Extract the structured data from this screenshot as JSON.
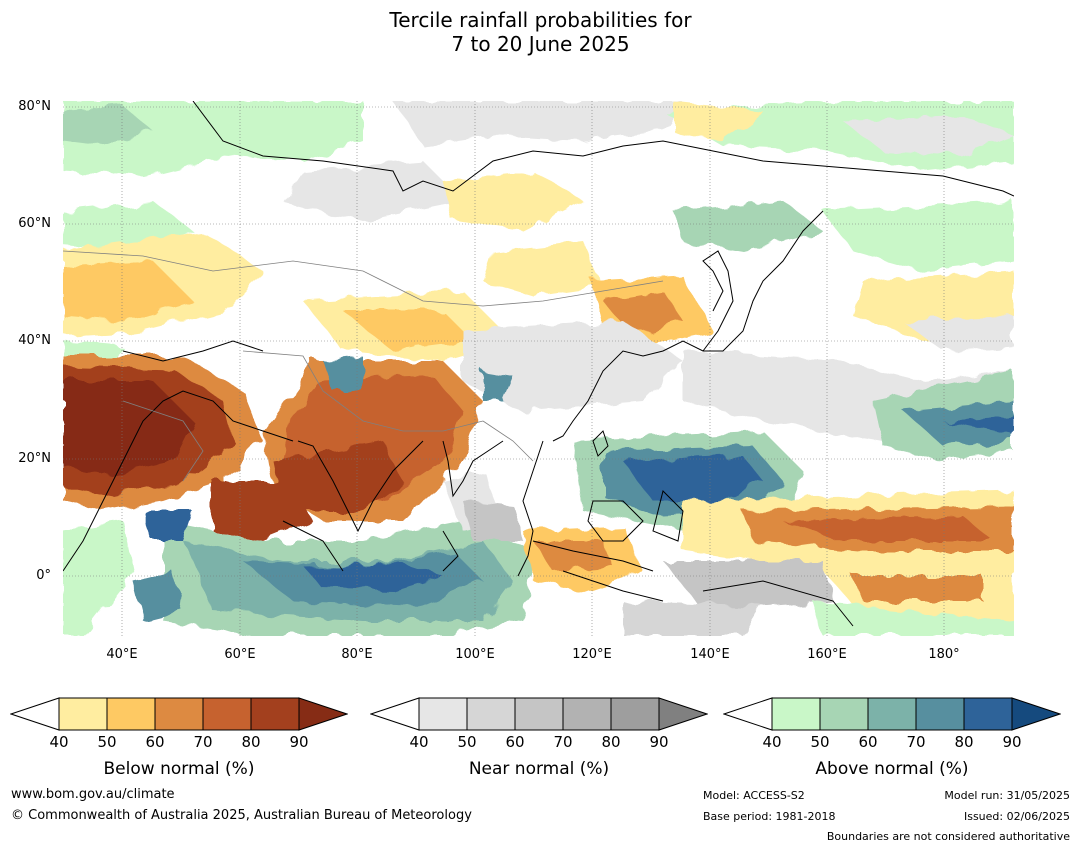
{
  "title": {
    "line1": "Tercile rainfall probabilities for",
    "line2": "7 to 20 June 2025"
  },
  "map": {
    "lat_ticks": [
      "80°N",
      "60°N",
      "40°N",
      "20°N",
      "0°"
    ],
    "lon_ticks": [
      "40°E",
      "60°E",
      "80°E",
      "100°E",
      "120°E",
      "140°E",
      "160°E",
      "180°"
    ],
    "colors": {
      "below": [
        "#ffeda0",
        "#fec963",
        "#dd8a41",
        "#c6622f",
        "#a3401e",
        "#862c15"
      ],
      "near": [
        "#e6e6e6",
        "#d6d6d6",
        "#c5c5c5",
        "#b2b2b2",
        "#9e9e9e",
        "#808080"
      ],
      "above": [
        "#c9f7c8",
        "#a7d5b4",
        "#7cb2a9",
        "#578f9f",
        "#2e6399",
        "#154a7e"
      ],
      "coast": "#000000",
      "border": "#808080"
    }
  },
  "colorbars": [
    {
      "label": "Below normal (%)",
      "ticks": [
        "40",
        "50",
        "60",
        "70",
        "80",
        "90"
      ]
    },
    {
      "label": "Near normal (%)",
      "ticks": [
        "40",
        "50",
        "60",
        "70",
        "80",
        "90"
      ]
    },
    {
      "label": "Above normal (%)",
      "ticks": [
        "40",
        "50",
        "60",
        "70",
        "80",
        "90"
      ]
    }
  ],
  "footer": {
    "website": "www.bom.gov.au/climate",
    "copyright": "© Commonwealth of Australia 2025, Australian Bureau of Meteorology",
    "model": "Model: ACCESS-S2",
    "base_period": "Base period: 1981-2018",
    "model_run": "Model run: 31/05/2025",
    "issued": "Issued: 02/06/2025",
    "boundaries": "Boundaries are not considered authoritative"
  }
}
